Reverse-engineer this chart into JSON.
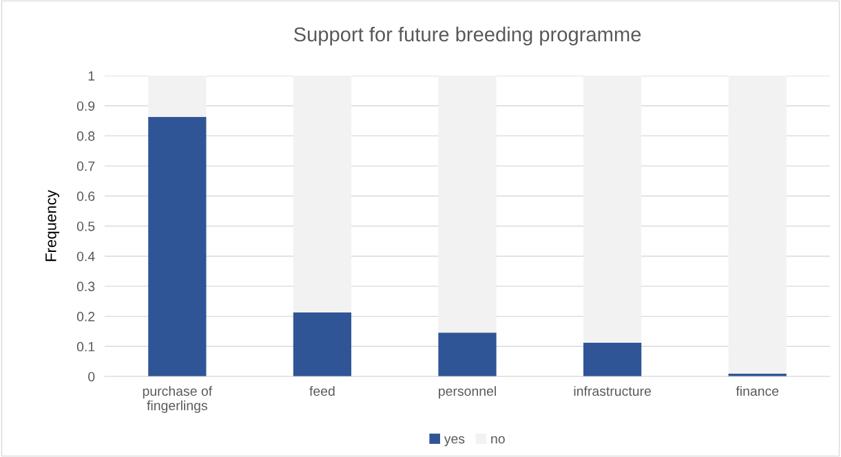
{
  "chart_data": {
    "type": "bar",
    "title": "Support for future breeding programme",
    "ylabel": "Frequency",
    "categories": [
      "purchase of\nfingerlings",
      "feed",
      "personnel",
      "infrastructure",
      "finance"
    ],
    "series": [
      {
        "name": "yes",
        "color": "#2f5597",
        "values": [
          0.863,
          0.213,
          0.146,
          0.112,
          0.01
        ]
      },
      {
        "name": "no",
        "color": "#f2f2f2",
        "values": [
          0.137,
          0.787,
          0.854,
          0.888,
          0.99
        ]
      }
    ],
    "stacked": true,
    "ylim": [
      0,
      1
    ],
    "yticks": [
      0,
      0.1,
      0.2,
      0.3,
      0.4,
      0.5,
      0.6,
      0.7,
      0.8,
      0.9,
      1
    ],
    "grid": "y",
    "legend": "bottom"
  }
}
